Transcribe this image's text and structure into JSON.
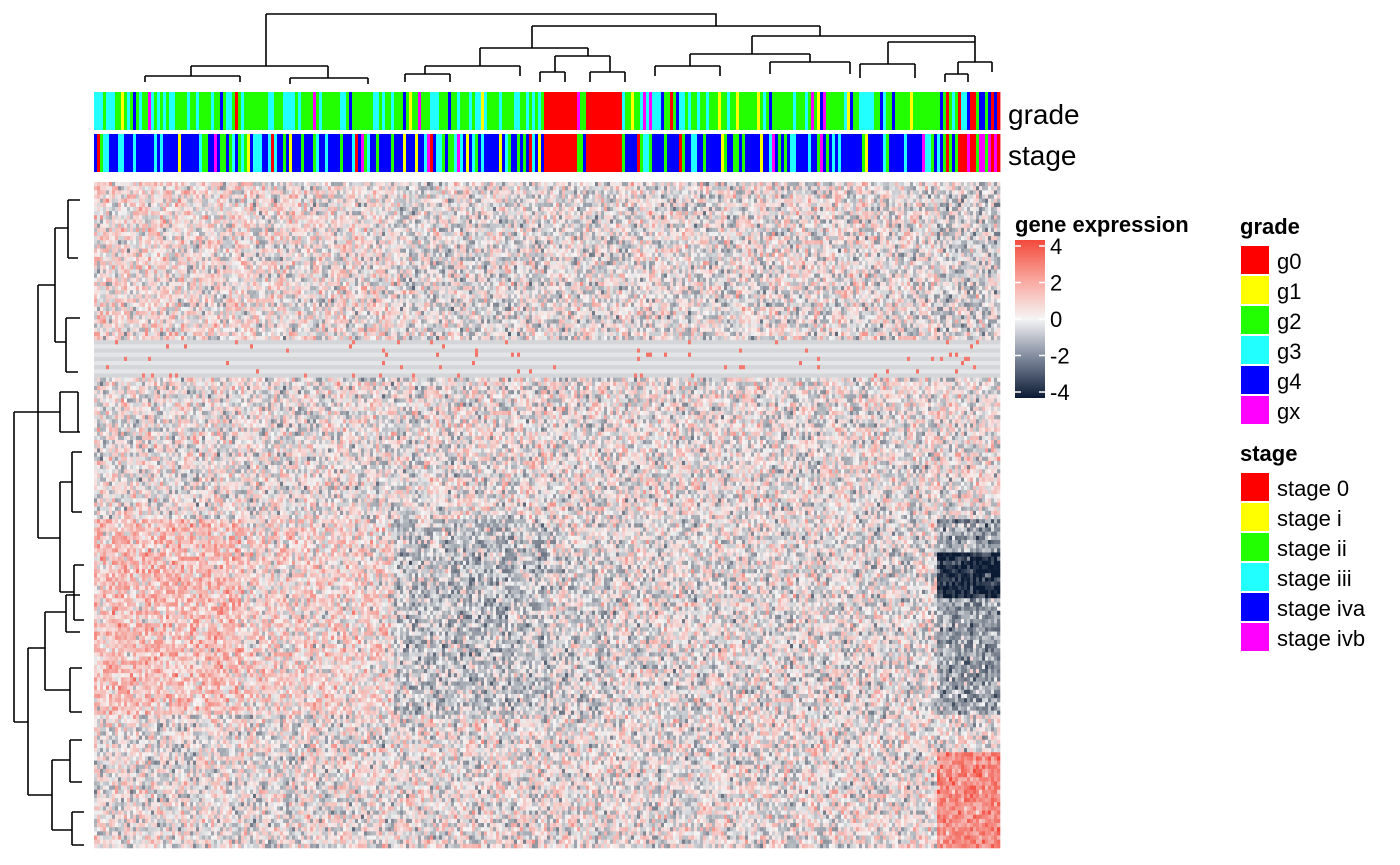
{
  "chart_data": {
    "type": "heatmap",
    "title": "",
    "annotation_tracks": [
      {
        "name": "grade",
        "label": "grade"
      },
      {
        "name": "stage",
        "label": "stage"
      }
    ],
    "color_scale": {
      "title": "gene expression",
      "ticks": [
        "4",
        "2",
        "0",
        "-2",
        "-4"
      ],
      "tick_values": [
        4,
        2,
        0,
        -2,
        -4
      ],
      "range": [
        -4,
        4
      ],
      "low_color": "#0b1a33",
      "mid_color": "#f5f5f5",
      "high_color": "#f34a3c"
    },
    "legends": [
      {
        "title": "grade",
        "items": [
          {
            "label": "g0",
            "color": "#ff0000"
          },
          {
            "label": "g1",
            "color": "#ffff00"
          },
          {
            "label": "g2",
            "color": "#22ff00"
          },
          {
            "label": "g3",
            "color": "#22ffff"
          },
          {
            "label": "g4",
            "color": "#0000ff"
          },
          {
            "label": "gx",
            "color": "#ff00ff"
          }
        ]
      },
      {
        "title": "stage",
        "items": [
          {
            "label": "stage 0",
            "color": "#ff0000"
          },
          {
            "label": "stage i",
            "color": "#ffff00"
          },
          {
            "label": "stage ii",
            "color": "#22ff00"
          },
          {
            "label": "stage iii",
            "color": "#22ffff"
          },
          {
            "label": "stage iva",
            "color": "#0000ff"
          },
          {
            "label": "stage ivb",
            "color": "#ff00ff"
          }
        ]
      }
    ],
    "column_dendrogram": true,
    "row_dendrogram": true,
    "grid": false
  }
}
